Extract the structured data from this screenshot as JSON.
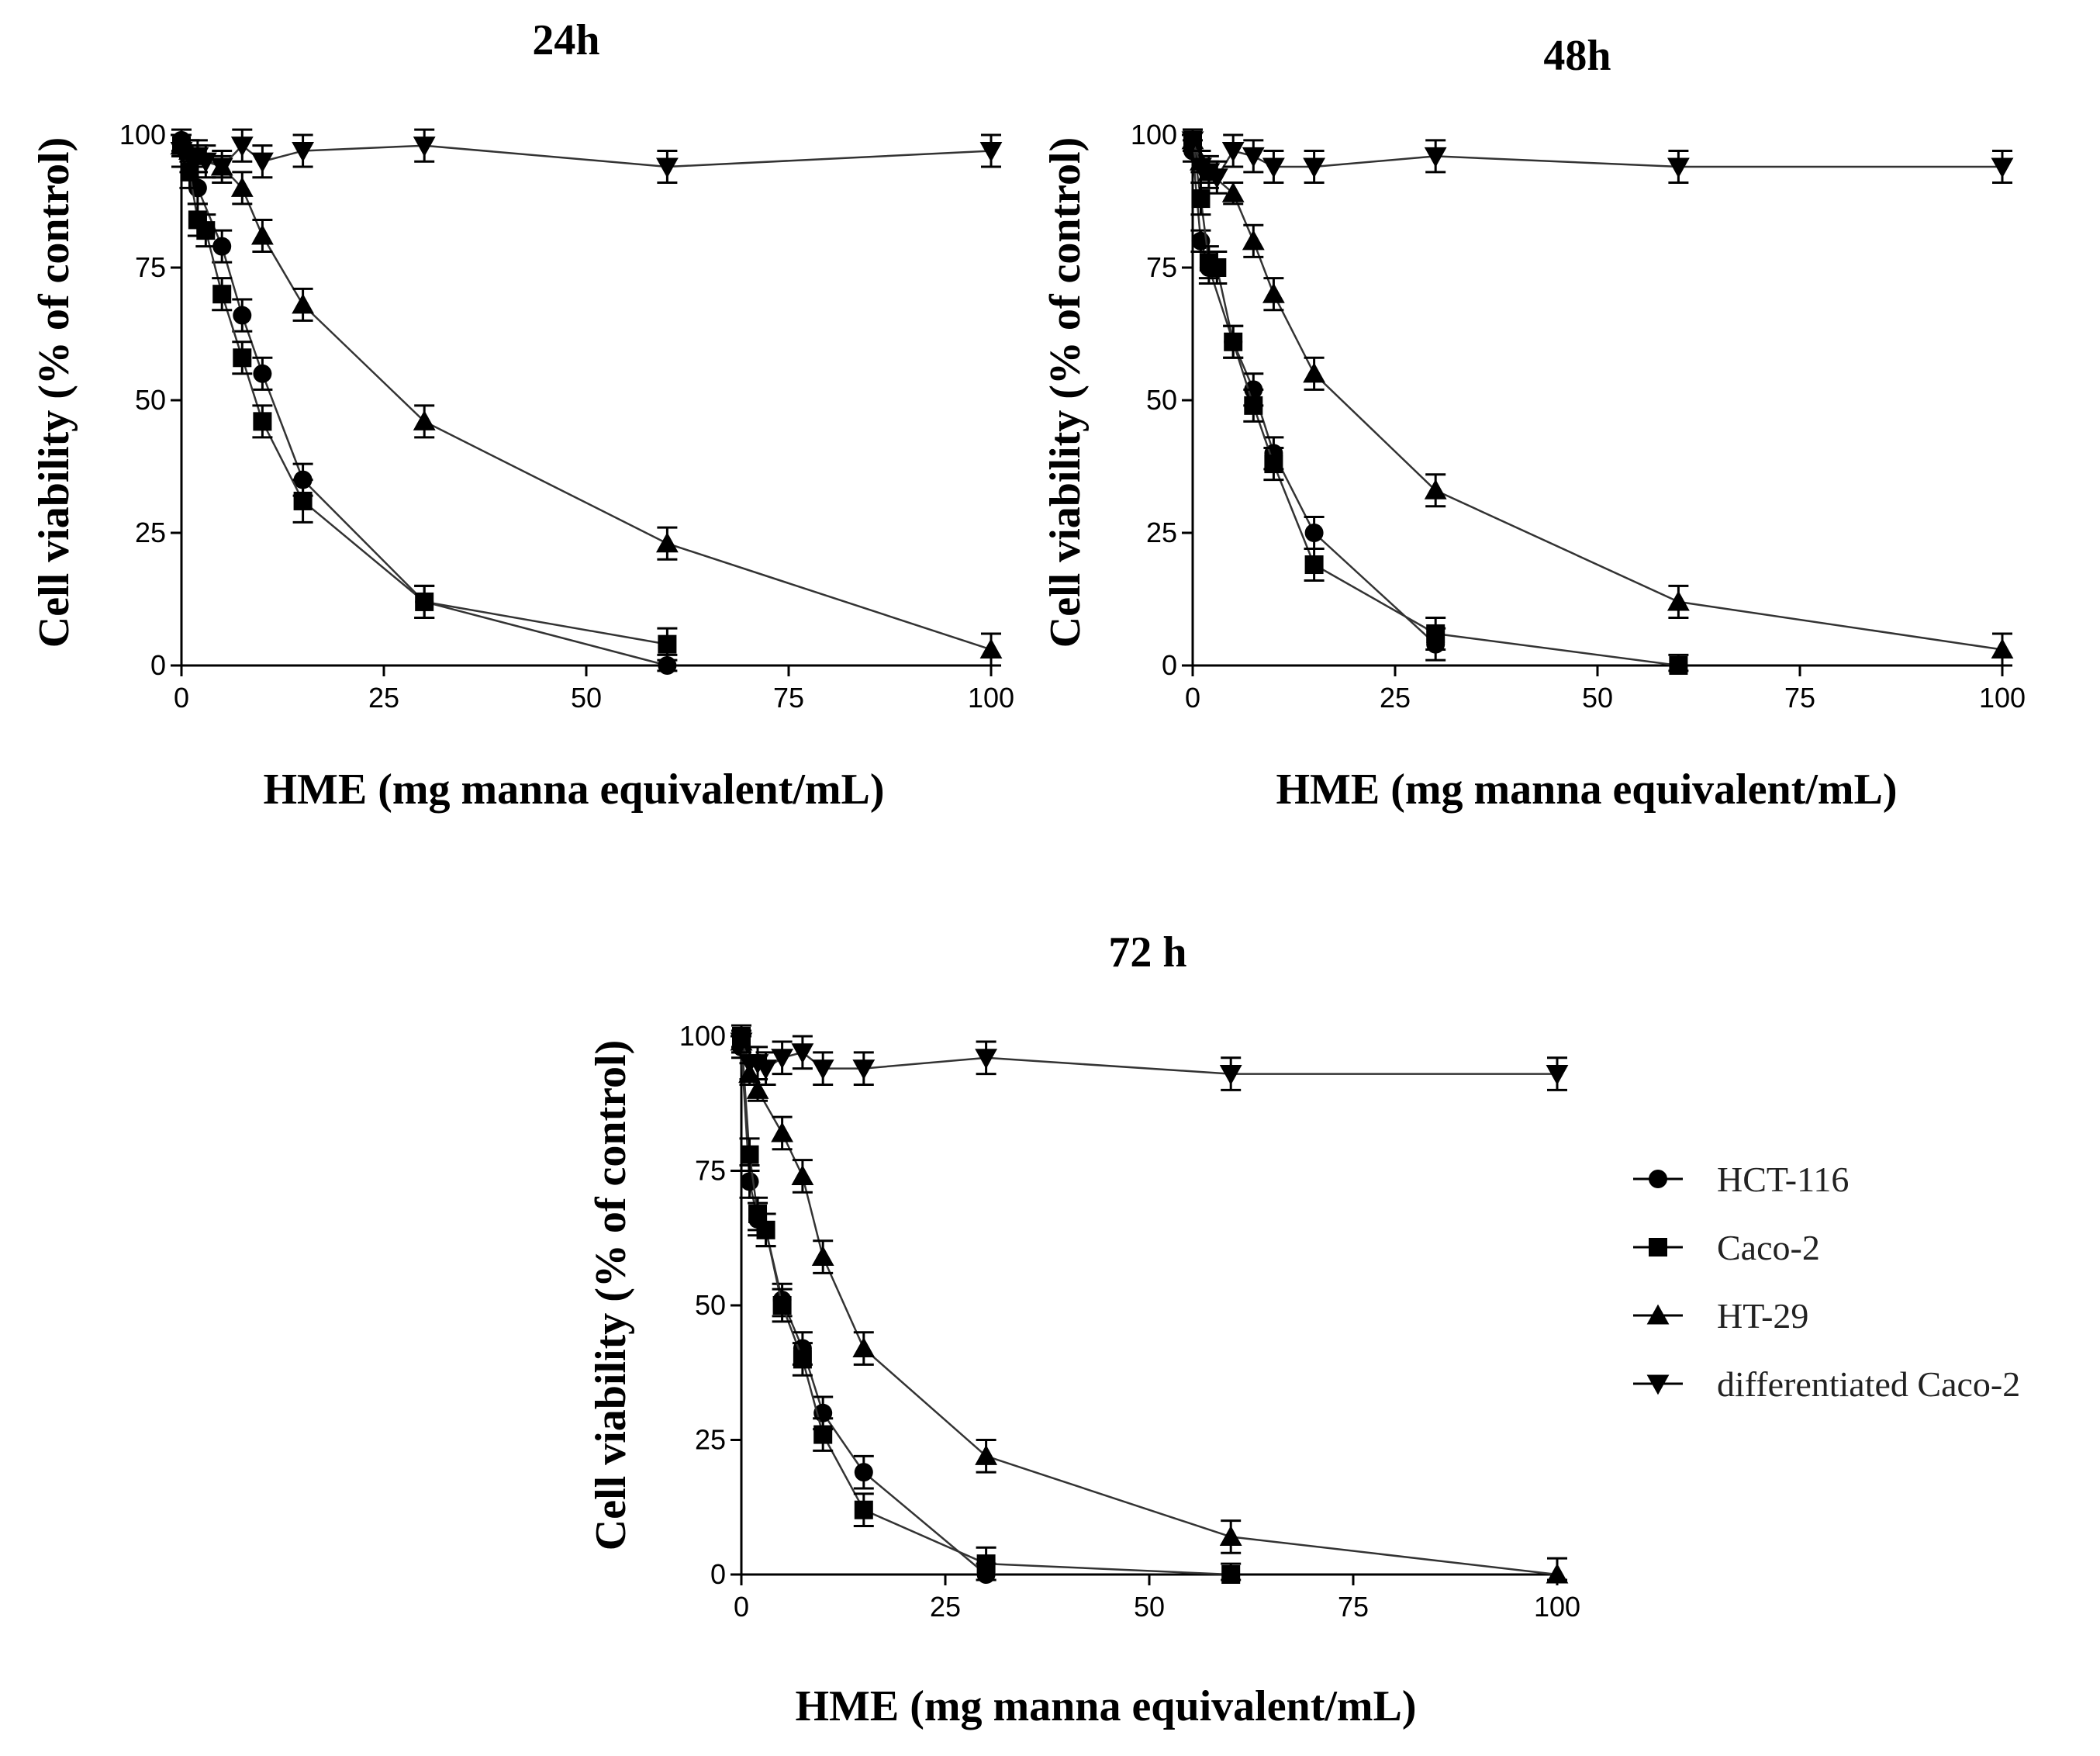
{
  "chart_data": [
    {
      "type": "line",
      "title": "24h",
      "xlabel": "HME (mg manna equivalent/mL)",
      "ylabel": "Cell viability (% of control)",
      "xlim": [
        0,
        100
      ],
      "ylim": [
        0,
        100
      ],
      "xticks": [
        0,
        25,
        50,
        75,
        100
      ],
      "yticks": [
        0,
        25,
        50,
        75,
        100
      ],
      "series": [
        {
          "name": "HCT-116",
          "marker": "circle",
          "x": [
            0,
            1,
            2,
            5,
            7.5,
            10,
            15,
            30,
            60
          ],
          "y": [
            99,
            96,
            90,
            79,
            66,
            55,
            35,
            12,
            0
          ],
          "err": [
            2,
            2,
            3,
            3,
            3,
            3,
            3,
            3,
            2
          ]
        },
        {
          "name": "Caco-2",
          "marker": "square",
          "x": [
            0,
            1,
            2,
            3,
            5,
            7.5,
            10,
            15,
            30,
            60
          ],
          "y": [
            98,
            93,
            84,
            82,
            70,
            58,
            46,
            31,
            12,
            4
          ],
          "err": [
            2,
            3,
            3,
            3,
            3,
            3,
            3,
            4,
            3,
            3
          ]
        },
        {
          "name": "HT-29",
          "marker": "triangle-up",
          "x": [
            0,
            1,
            2,
            5,
            7.5,
            10,
            15,
            30,
            60,
            100
          ],
          "y": [
            98,
            97,
            96,
            94,
            90,
            81,
            68,
            46,
            23,
            3
          ],
          "err": [
            2,
            2,
            2,
            2,
            3,
            3,
            3,
            3,
            3,
            3
          ]
        },
        {
          "name": "differentiated Caco-2",
          "marker": "triangle-down",
          "x": [
            0,
            1,
            2,
            3,
            5,
            7.5,
            10,
            15,
            30,
            60,
            100
          ],
          "y": [
            97,
            96,
            96,
            95,
            94,
            98,
            95,
            97,
            98,
            94,
            97
          ],
          "err": [
            3,
            3,
            3,
            3,
            3,
            3,
            3,
            3,
            3,
            3,
            3
          ]
        }
      ]
    },
    {
      "type": "line",
      "title": "48h",
      "xlabel": "HME (mg manna equivalent/mL)",
      "ylabel": "Cell viability (% of control)",
      "xlim": [
        0,
        100
      ],
      "ylim": [
        0,
        100
      ],
      "xticks": [
        0,
        25,
        50,
        75,
        100
      ],
      "yticks": [
        0,
        25,
        50,
        75,
        100
      ],
      "series": [
        {
          "name": "HCT-116",
          "marker": "circle",
          "x": [
            0,
            1,
            2,
            5,
            7.5,
            10,
            15,
            30
          ],
          "y": [
            97,
            80,
            75,
            61,
            52,
            40,
            25,
            4
          ],
          "err": [
            2,
            2,
            3,
            3,
            3,
            3,
            3,
            3
          ]
        },
        {
          "name": "Caco-2",
          "marker": "square",
          "x": [
            0,
            1,
            2,
            3,
            5,
            7.5,
            10,
            15,
            30,
            60
          ],
          "y": [
            99,
            88,
            76,
            75,
            61,
            49,
            38,
            19,
            6,
            0
          ],
          "err": [
            2,
            3,
            3,
            3,
            3,
            3,
            3,
            3,
            3,
            2
          ]
        },
        {
          "name": "HT-29",
          "marker": "triangle-up",
          "x": [
            0,
            1,
            2,
            5,
            7.5,
            10,
            15,
            30,
            60,
            100
          ],
          "y": [
            99,
            95,
            93,
            89,
            80,
            70,
            55,
            33,
            12,
            3
          ],
          "err": [
            2,
            2,
            2,
            2,
            3,
            3,
            3,
            3,
            3,
            3
          ]
        },
        {
          "name": "differentiated Caco-2",
          "marker": "triangle-down",
          "x": [
            0,
            1,
            2,
            3,
            5,
            7.5,
            10,
            15,
            30,
            60,
            100
          ],
          "y": [
            99,
            94,
            93,
            92,
            97,
            96,
            94,
            94,
            96,
            94,
            94
          ],
          "err": [
            2,
            3,
            3,
            3,
            3,
            3,
            3,
            3,
            3,
            3,
            3
          ]
        }
      ]
    },
    {
      "type": "line",
      "title": "72 h",
      "xlabel": "HME (mg manna equivalent/mL)",
      "ylabel": "Cell viability (% of control)",
      "xlim": [
        0,
        100
      ],
      "ylim": [
        0,
        100
      ],
      "xticks": [
        0,
        25,
        50,
        75,
        100
      ],
      "yticks": [
        0,
        25,
        50,
        75,
        100
      ],
      "series": [
        {
          "name": "HCT-116",
          "marker": "circle",
          "x": [
            0,
            1,
            2,
            3,
            5,
            7.5,
            10,
            15,
            30
          ],
          "y": [
            98,
            73,
            66,
            64,
            51,
            42,
            30,
            19,
            0
          ],
          "err": [
            2,
            3,
            3,
            3,
            3,
            3,
            3,
            3,
            2
          ]
        },
        {
          "name": "Caco-2",
          "marker": "square",
          "x": [
            0,
            1,
            2,
            3,
            5,
            7.5,
            10,
            15,
            30,
            60
          ],
          "y": [
            100,
            78,
            67,
            64,
            50,
            40,
            26,
            12,
            2,
            0
          ],
          "err": [
            2,
            3,
            3,
            3,
            3,
            3,
            3,
            3,
            3,
            2
          ]
        },
        {
          "name": "HT-29",
          "marker": "triangle-up",
          "x": [
            0,
            1,
            2,
            5,
            7.5,
            10,
            15,
            30,
            60,
            100
          ],
          "y": [
            99,
            93,
            90,
            82,
            74,
            59,
            42,
            22,
            7,
            0
          ],
          "err": [
            2,
            2,
            2,
            3,
            3,
            3,
            3,
            3,
            3,
            3
          ]
        },
        {
          "name": "differentiated Caco-2",
          "marker": "triangle-down",
          "x": [
            0,
            1,
            2,
            3,
            5,
            7.5,
            10,
            15,
            30,
            60,
            100
          ],
          "y": [
            99,
            95,
            95,
            94,
            96,
            97,
            94,
            94,
            96,
            93,
            93
          ],
          "err": [
            2,
            3,
            3,
            3,
            3,
            3,
            3,
            3,
            3,
            3,
            3
          ]
        }
      ]
    }
  ],
  "legend": {
    "position": "right of 72 h panel",
    "entries": [
      {
        "label": "HCT-116",
        "marker": "circle"
      },
      {
        "label": "Caco-2",
        "marker": "square"
      },
      {
        "label": "HT-29",
        "marker": "triangle-up"
      },
      {
        "label": "differentiated Caco-2",
        "marker": "triangle-down"
      }
    ]
  },
  "colors": {
    "ink": "#000000",
    "legend_text": "#222222",
    "background": "#ffffff"
  }
}
